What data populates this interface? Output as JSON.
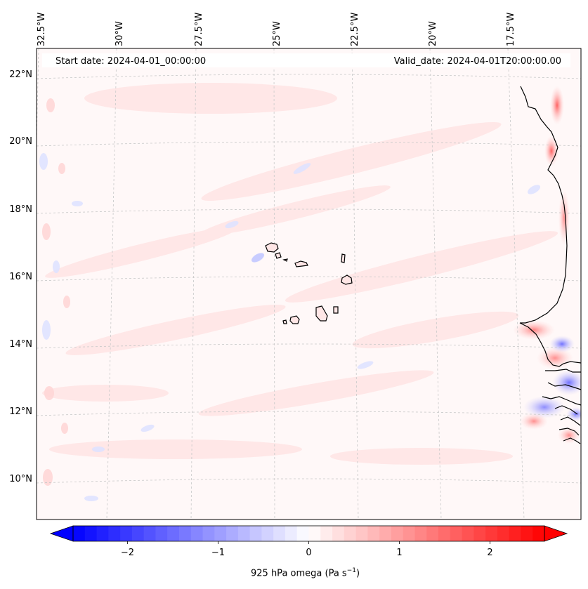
{
  "map": {
    "title_left": "Start date: 2024-04-01_00:00:00",
    "title_right": "Valid_date: 2024-04-01T20:00:00.00",
    "lon_labels": [
      "32.5°W",
      "30°W",
      "27.5°W",
      "25°W",
      "22.5°W",
      "20°W",
      "17.5°W"
    ],
    "lat_labels": [
      "22°N",
      "20°N",
      "18°N",
      "16°N",
      "14°N",
      "12°N",
      "10°N"
    ],
    "field": "925 hPa omega",
    "units_label": "925 hPa omega (Pa s",
    "units_exp": "−1",
    "units_close": ")",
    "colormap": "bwr",
    "colors": {
      "neg": "#0000ff",
      "zero": "#ffffff",
      "pos": "#ff0000",
      "coast": "#000000",
      "grid": "#c8c8c8"
    }
  },
  "colorbar": {
    "ticks": [
      -2,
      -1,
      0,
      1,
      2
    ],
    "tick_labels": [
      "−2",
      "−1",
      "0",
      "1",
      "2"
    ],
    "range": [
      -2.6,
      2.6
    ],
    "extend": "both"
  }
}
